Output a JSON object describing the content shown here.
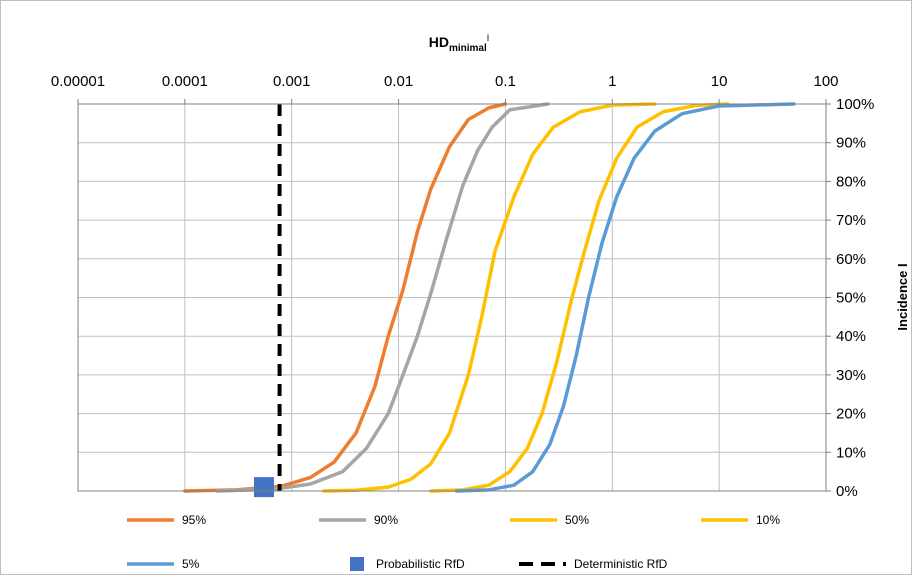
{
  "chart_data": {
    "type": "line",
    "title": "",
    "xlabel": "HD",
    "xlabel_subscript": "minimal",
    "xlabel_superscript": "I",
    "ylabel": "Incidence I",
    "x_scale": "log",
    "x_tick_labels": [
      "0.00001",
      "0.0001",
      "0.001",
      "0.01",
      "0.1",
      "1",
      "10",
      "100"
    ],
    "y_tick_labels": [
      "0%",
      "10%",
      "20%",
      "30%",
      "40%",
      "50%",
      "60%",
      "70%",
      "80%",
      "90%",
      "100%"
    ],
    "xlim": [
      1e-05,
      100
    ],
    "ylim": [
      0,
      1
    ],
    "grid": true,
    "x_axis_position": "top",
    "y_axis_position": "right",
    "legend_position": "bottom",
    "series": [
      {
        "name": "95%",
        "color": "#ED7D31",
        "points": [
          [
            0.0001,
            0
          ],
          [
            0.0003,
            0.003
          ],
          [
            0.0008,
            0.012
          ],
          [
            0.0015,
            0.035
          ],
          [
            0.0025,
            0.075
          ],
          [
            0.004,
            0.15
          ],
          [
            0.006,
            0.27
          ],
          [
            0.008,
            0.4
          ],
          [
            0.011,
            0.52
          ],
          [
            0.015,
            0.67
          ],
          [
            0.02,
            0.78
          ],
          [
            0.03,
            0.89
          ],
          [
            0.045,
            0.96
          ],
          [
            0.07,
            0.99
          ],
          [
            0.1,
            1.0
          ]
        ]
      },
      {
        "name": "90%",
        "color": "#A5A5A5",
        "points": [
          [
            0.0002,
            0
          ],
          [
            0.0007,
            0.005
          ],
          [
            0.0015,
            0.018
          ],
          [
            0.003,
            0.05
          ],
          [
            0.005,
            0.11
          ],
          [
            0.008,
            0.2
          ],
          [
            0.011,
            0.3
          ],
          [
            0.015,
            0.4
          ],
          [
            0.02,
            0.51
          ],
          [
            0.028,
            0.65
          ],
          [
            0.04,
            0.79
          ],
          [
            0.055,
            0.88
          ],
          [
            0.075,
            0.94
          ],
          [
            0.11,
            0.985
          ],
          [
            0.25,
            1.0
          ]
        ]
      },
      {
        "name": "50%",
        "color": "#FFC000",
        "points": [
          [
            0.002,
            0
          ],
          [
            0.004,
            0.002
          ],
          [
            0.008,
            0.01
          ],
          [
            0.013,
            0.03
          ],
          [
            0.02,
            0.07
          ],
          [
            0.03,
            0.15
          ],
          [
            0.045,
            0.3
          ],
          [
            0.06,
            0.45
          ],
          [
            0.08,
            0.62
          ],
          [
            0.12,
            0.76
          ],
          [
            0.18,
            0.87
          ],
          [
            0.28,
            0.94
          ],
          [
            0.5,
            0.98
          ],
          [
            1,
            0.997
          ],
          [
            2.5,
            1.0
          ]
        ]
      },
      {
        "name": "10%",
        "color": "#FFC000",
        "points": [
          [
            0.02,
            0
          ],
          [
            0.04,
            0.003
          ],
          [
            0.07,
            0.015
          ],
          [
            0.11,
            0.05
          ],
          [
            0.16,
            0.11
          ],
          [
            0.22,
            0.2
          ],
          [
            0.3,
            0.33
          ],
          [
            0.42,
            0.5
          ],
          [
            0.55,
            0.62
          ],
          [
            0.75,
            0.75
          ],
          [
            1.1,
            0.86
          ],
          [
            1.7,
            0.94
          ],
          [
            3,
            0.98
          ],
          [
            6,
            0.996
          ],
          [
            12,
            1.0
          ]
        ]
      },
      {
        "name": "5%",
        "color": "#5B9BD5",
        "points": [
          [
            0.035,
            0
          ],
          [
            0.07,
            0.003
          ],
          [
            0.12,
            0.015
          ],
          [
            0.18,
            0.05
          ],
          [
            0.26,
            0.12
          ],
          [
            0.35,
            0.22
          ],
          [
            0.46,
            0.35
          ],
          [
            0.6,
            0.5
          ],
          [
            0.8,
            0.64
          ],
          [
            1.1,
            0.76
          ],
          [
            1.6,
            0.86
          ],
          [
            2.5,
            0.93
          ],
          [
            4.5,
            0.975
          ],
          [
            10,
            0.995
          ],
          [
            50,
            1.0
          ]
        ]
      }
    ],
    "markers": [
      {
        "name": "Probabilistic RfD",
        "type": "square",
        "color": "#4472C4",
        "x": 0.00055,
        "y": 0.01
      }
    ],
    "reference_lines": [
      {
        "name": "Deterministic RfD",
        "type": "vertical-dashed",
        "color": "#000000",
        "x": 0.00077
      }
    ]
  }
}
